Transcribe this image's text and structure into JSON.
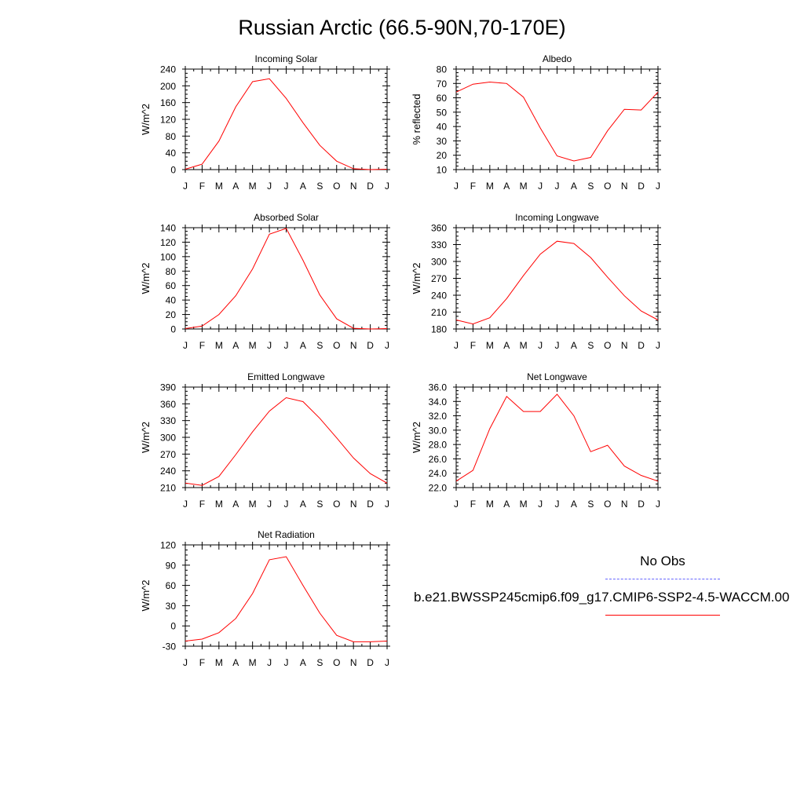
{
  "page_title": "Russian Arctic (66.5-90N,70-170E)",
  "month_labels": [
    "J",
    "F",
    "M",
    "A",
    "M",
    "J",
    "J",
    "A",
    "S",
    "O",
    "N",
    "D",
    "J"
  ],
  "series_color": "#ff0000",
  "obs_color": "#6666ff",
  "legend": {
    "obs_label": "No Obs",
    "model_label": "b.e21.BWSSP245cmip6.f09_g17.CMIP6-SSP2-4.5-WACCM.00"
  },
  "chart_data": [
    {
      "type": "line",
      "title": "Incoming Solar",
      "ylabel": "W/m^2",
      "ylim": [
        0,
        240
      ],
      "yticks": [
        0,
        40,
        80,
        120,
        160,
        200,
        240
      ],
      "ytick_labels": [
        "0",
        "40",
        "80",
        "120",
        "160",
        "200",
        "240"
      ],
      "x": [
        "J",
        "F",
        "M",
        "A",
        "M",
        "J",
        "J",
        "A",
        "S",
        "O",
        "N",
        "D",
        "J"
      ],
      "series": [
        {
          "values": [
            1,
            13,
            68,
            150,
            210,
            217,
            170,
            112,
            58,
            20,
            2,
            0,
            1
          ]
        }
      ]
    },
    {
      "type": "line",
      "title": "Albedo",
      "ylabel": "% reflected",
      "ylim": [
        10,
        80
      ],
      "yticks": [
        10,
        20,
        30,
        40,
        50,
        60,
        70,
        80
      ],
      "ytick_labels": [
        "10",
        "20",
        "30",
        "40",
        "50",
        "60",
        "70",
        "80"
      ],
      "x": [
        "J",
        "F",
        "M",
        "A",
        "M",
        "J",
        "J",
        "A",
        "S",
        "O",
        "N",
        "D",
        "J"
      ],
      "series": [
        {
          "values": [
            64,
            69.5,
            71,
            70,
            60.5,
            39,
            19.5,
            16,
            18.5,
            37,
            52,
            51.5,
            64
          ]
        }
      ]
    },
    {
      "type": "line",
      "title": "Absorbed Solar",
      "ylabel": "W/m^2",
      "ylim": [
        0,
        140
      ],
      "yticks": [
        0,
        20,
        40,
        60,
        80,
        100,
        120,
        140
      ],
      "ytick_labels": [
        "0",
        "20",
        "40",
        "60",
        "80",
        "100",
        "120",
        "140"
      ],
      "x": [
        "J",
        "F",
        "M",
        "A",
        "M",
        "J",
        "J",
        "A",
        "S",
        "O",
        "N",
        "D",
        "J"
      ],
      "series": [
        {
          "values": [
            0.5,
            4,
            20,
            46,
            83,
            131,
            139,
            95,
            47,
            14,
            1,
            0,
            0.5
          ]
        }
      ]
    },
    {
      "type": "line",
      "title": "Incoming Longwave",
      "ylabel": "W/m^2",
      "ylim": [
        180,
        360
      ],
      "yticks": [
        180,
        210,
        240,
        270,
        300,
        330,
        360
      ],
      "ytick_labels": [
        "180",
        "210",
        "240",
        "270",
        "300",
        "330",
        "360"
      ],
      "x": [
        "J",
        "F",
        "M",
        "A",
        "M",
        "J",
        "J",
        "A",
        "S",
        "O",
        "N",
        "D",
        "J"
      ],
      "series": [
        {
          "values": [
            196,
            189,
            200,
            234,
            275,
            313,
            336,
            332,
            307,
            272,
            239,
            212,
            196
          ]
        }
      ]
    },
    {
      "type": "line",
      "title": "Emitted Longwave",
      "ylabel": "W/m^2",
      "ylim": [
        210,
        390
      ],
      "yticks": [
        210,
        240,
        270,
        300,
        330,
        360,
        390
      ],
      "ytick_labels": [
        "210",
        "240",
        "270",
        "300",
        "330",
        "360",
        "390"
      ],
      "x": [
        "J",
        "F",
        "M",
        "A",
        "M",
        "J",
        "J",
        "A",
        "S",
        "O",
        "N",
        "D",
        "J"
      ],
      "series": [
        {
          "values": [
            218,
            214,
            230,
            269,
            310,
            347,
            371,
            364,
            334,
            299,
            263,
            235,
            218
          ]
        }
      ]
    },
    {
      "type": "line",
      "title": "Net Longwave",
      "ylabel": "W/m^2",
      "ylim": [
        22,
        36
      ],
      "yticks": [
        22,
        24,
        26,
        28,
        30,
        32,
        34,
        36
      ],
      "ytick_labels": [
        "22.0",
        "24.0",
        "26.0",
        "28.0",
        "30.0",
        "32.0",
        "34.0",
        "36.0"
      ],
      "x": [
        "J",
        "F",
        "M",
        "A",
        "M",
        "J",
        "J",
        "A",
        "S",
        "O",
        "N",
        "D",
        "J"
      ],
      "series": [
        {
          "values": [
            22.9,
            24.4,
            30.2,
            34.7,
            32.6,
            32.6,
            35.0,
            32.0,
            27.0,
            27.9,
            25.0,
            23.7,
            22.9
          ]
        }
      ]
    },
    {
      "type": "line",
      "title": "Net Radiation",
      "ylabel": "W/m^2",
      "ylim": [
        -30,
        120
      ],
      "yticks": [
        -30,
        0,
        30,
        60,
        90,
        120
      ],
      "ytick_labels": [
        "-30",
        "0",
        "30",
        "60",
        "90",
        "120"
      ],
      "x": [
        "J",
        "F",
        "M",
        "A",
        "M",
        "J",
        "J",
        "A",
        "S",
        "O",
        "N",
        "D",
        "J"
      ],
      "series": [
        {
          "values": [
            -22.5,
            -19.5,
            -10,
            11,
            48,
            98,
            102.5,
            60,
            19,
            -14,
            -23.5,
            -23.5,
            -22.5
          ]
        }
      ]
    }
  ]
}
